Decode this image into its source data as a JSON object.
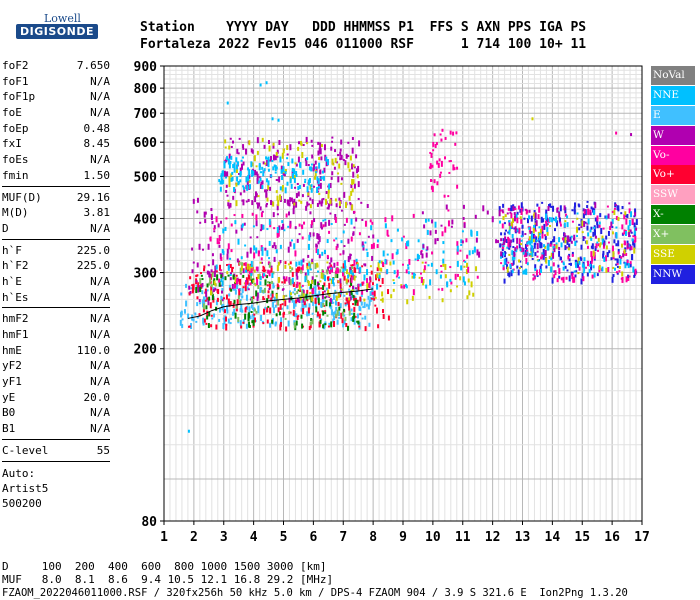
{
  "logo": {
    "top": "Lowell",
    "main": "DIGISONDE"
  },
  "header": {
    "line1": "Station    YYYY DAY   DDD HHMMSS P1  FFS S AXN PPS IGA PS",
    "line2": "Fortaleza 2022 Fev15 046 011000 RSF      1 714 100 10+ 11"
  },
  "params": {
    "group1": [
      {
        "key": "foF2",
        "value": "7.650"
      },
      {
        "key": "foF1",
        "value": "N/A"
      },
      {
        "key": "foF1p",
        "value": "N/A"
      },
      {
        "key": "foE",
        "value": "N/A"
      },
      {
        "key": "foEp",
        "value": "0.48"
      },
      {
        "key": "fxI",
        "value": "8.45"
      },
      {
        "key": "foEs",
        "value": "N/A"
      },
      {
        "key": "fmin",
        "value": "1.50"
      }
    ],
    "group2": [
      {
        "key": "MUF(D)",
        "value": "29.16"
      },
      {
        "key": "M(D)",
        "value": "3.81"
      },
      {
        "key": "D",
        "value": "N/A"
      }
    ],
    "group3": [
      {
        "key": "h`F",
        "value": "225.0"
      },
      {
        "key": "h`F2",
        "value": "225.0"
      },
      {
        "key": "h`E",
        "value": "N/A"
      },
      {
        "key": "h`Es",
        "value": "N/A"
      }
    ],
    "group4": [
      {
        "key": "hmF2",
        "value": "N/A"
      },
      {
        "key": "hmF1",
        "value": "N/A"
      },
      {
        "key": "hmE",
        "value": "110.0"
      },
      {
        "key": "yF2",
        "value": "N/A"
      },
      {
        "key": "yF1",
        "value": "N/A"
      },
      {
        "key": "yE",
        "value": "20.0"
      },
      {
        "key": "B0",
        "value": "N/A"
      },
      {
        "key": "B1",
        "value": "N/A"
      }
    ],
    "group5": [
      {
        "key": "C-level",
        "value": "55"
      }
    ],
    "auto": {
      "line1": "Auto:",
      "line2": "Artist5",
      "line3": "500200"
    }
  },
  "bottom": {
    "d_row": "D     100  200  400  600  800 1000 1500 3000 [km]",
    "muf_row": "MUF   8.0  8.1  8.6  9.4 10.5 12.1 16.8 29.2 [MHz]",
    "footer": "FZAOM_2022046011000.RSF / 320fx256h 50 kHz 5.0 km / DPS-4 FZAOM 904 / 3.9 S 321.6 E  Ion2Png 1.3.20"
  },
  "legend": [
    {
      "label": "NoVal",
      "color": "#808080"
    },
    {
      "label": "NNE",
      "color": "#00c0ff"
    },
    {
      "label": "E",
      "color": "#40c0ff"
    },
    {
      "label": "W",
      "color": "#b000b0"
    },
    {
      "label": "Vo-",
      "color": "#ff00a0"
    },
    {
      "label": "Vo+",
      "color": "#ff0030"
    },
    {
      "label": "SSW",
      "color": "#ffa0c0"
    },
    {
      "label": "X-",
      "color": "#008000"
    },
    {
      "label": "X+",
      "color": "#80c060"
    },
    {
      "label": "SSE",
      "color": "#d0d000"
    },
    {
      "label": "NNW",
      "color": "#2020e0"
    }
  ],
  "chart_data": {
    "type": "scatter",
    "title": "",
    "xlabel": "",
    "ylabel": "",
    "x_ticks": [
      "1",
      "2",
      "3",
      "4",
      "5",
      "6",
      "7",
      "8",
      "9",
      "10",
      "11",
      "12",
      "13",
      "14",
      "15",
      "16",
      "17"
    ],
    "y_ticks": [
      "80",
      "200",
      "300",
      "400",
      "500",
      "600",
      "700",
      "800",
      "900"
    ],
    "xlim": [
      1,
      17
    ],
    "ylim": [
      80,
      900
    ],
    "y_scale": "log",
    "grid": true,
    "legend_position": "right",
    "trace_x": [
      1.8,
      2.2,
      2.6,
      3.0,
      3.5,
      4.0,
      4.5,
      5.0,
      5.5,
      6.0,
      6.5,
      7.0,
      7.5,
      8.0
    ],
    "trace_y": [
      235,
      238,
      245,
      250,
      253,
      255,
      258,
      260,
      262,
      265,
      268,
      270,
      272,
      275
    ],
    "clusters": [
      {
        "series": "E",
        "x": [
          1.5,
          8.0
        ],
        "y": [
          228,
          285
        ],
        "count": 260
      },
      {
        "series": "Vo+",
        "x": [
          1.8,
          8.5
        ],
        "y": [
          225,
          320
        ],
        "count": 240
      },
      {
        "series": "W",
        "x": [
          1.8,
          8.0
        ],
        "y": [
          260,
          450
        ],
        "count": 220
      },
      {
        "series": "X-",
        "x": [
          2.0,
          7.5
        ],
        "y": [
          225,
          300
        ],
        "count": 90
      },
      {
        "series": "X+",
        "x": [
          2.0,
          7.5
        ],
        "y": [
          230,
          320
        ],
        "count": 80
      },
      {
        "series": "SSE",
        "x": [
          2.5,
          11.5
        ],
        "y": [
          260,
          320
        ],
        "count": 100
      },
      {
        "series": "Vo-",
        "x": [
          2.5,
          11.5
        ],
        "y": [
          270,
          420
        ],
        "count": 140
      },
      {
        "series": "NNE",
        "x": [
          2.5,
          11.5
        ],
        "y": [
          280,
          400
        ],
        "count": 150
      },
      {
        "series": "W",
        "x": [
          3.0,
          7.5
        ],
        "y": [
          430,
          620
        ],
        "count": 200
      },
      {
        "series": "SSE",
        "x": [
          3.0,
          7.5
        ],
        "y": [
          430,
          620
        ],
        "count": 80
      },
      {
        "series": "NNE",
        "x": [
          2.8,
          6.5
        ],
        "y": [
          470,
          560
        ],
        "count": 120
      },
      {
        "series": "NNW",
        "x": [
          12.2,
          16.8
        ],
        "y": [
          290,
          440
        ],
        "count": 260
      },
      {
        "series": "Vo-",
        "x": [
          12.2,
          16.8
        ],
        "y": [
          290,
          430
        ],
        "count": 150
      },
      {
        "series": "SSE",
        "x": [
          12.2,
          16.8
        ],
        "y": [
          300,
          420
        ],
        "count": 60
      },
      {
        "series": "NNE",
        "x": [
          12.2,
          16.8
        ],
        "y": [
          300,
          420
        ],
        "count": 120
      },
      {
        "series": "W",
        "x": [
          9.5,
          16.8
        ],
        "y": [
          330,
          440
        ],
        "count": 90
      },
      {
        "series": "Vo-",
        "x": [
          9.8,
          10.8
        ],
        "y": [
          450,
          650
        ],
        "count": 40
      }
    ],
    "isolated_points": [
      {
        "series": "NNE",
        "x": 4.2,
        "y": 820
      },
      {
        "series": "NNE",
        "x": 4.4,
        "y": 830
      },
      {
        "series": "NNE",
        "x": 3.1,
        "y": 745
      },
      {
        "series": "NNE",
        "x": 4.8,
        "y": 680
      },
      {
        "series": "NNE",
        "x": 4.6,
        "y": 685
      },
      {
        "series": "NNE",
        "x": 1.8,
        "y": 130
      },
      {
        "series": "SSE",
        "x": 13.3,
        "y": 685
      },
      {
        "series": "Vo-",
        "x": 16.1,
        "y": 635
      },
      {
        "series": "W",
        "x": 16.6,
        "y": 630
      }
    ]
  }
}
